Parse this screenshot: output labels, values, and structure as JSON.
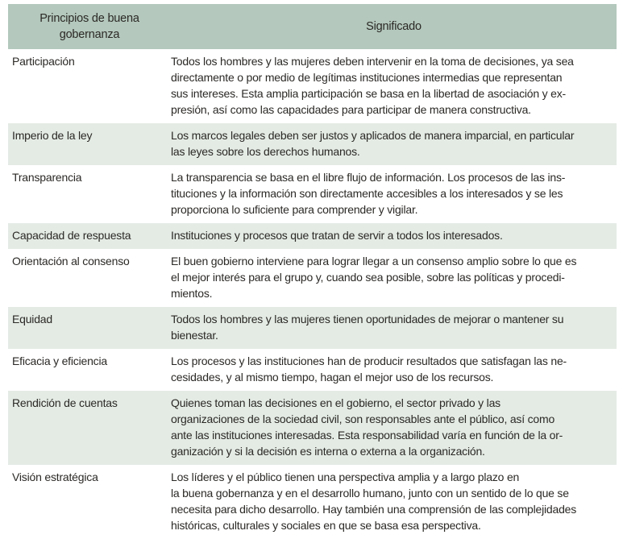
{
  "colors": {
    "header_bg": "#b4c8bd",
    "row_alt_bg": "#e4ebe5",
    "text_color": "#2b2926"
  },
  "table": {
    "header": {
      "col1": "Principios de buena\ngobernanza",
      "col2": "Significado"
    },
    "rows": [
      {
        "term": "Participación",
        "meaning": "Todos los hombres y las mujeres deben intervenir en la toma de decisiones, ya sea\ndirectamente o por medio de legítimas instituciones intermedias que representan\nsus intereses. Esta amplia participación se basa en la libertad de asociación y ex-\npresión, así como las capacidades para participar de manera constructiva."
      },
      {
        "term": "Imperio de la ley",
        "meaning": "Los marcos legales deben ser justos y aplicados de manera imparcial, en particular\nlas leyes sobre los derechos humanos."
      },
      {
        "term": "Transparencia",
        "meaning": "La transparencia se basa en el libre flujo de información. Los procesos de las ins-\ntituciones y la información son directamente accesibles a los interesados y se les\nproporciona lo suficiente para comprender y vigilar."
      },
      {
        "term": "Capacidad de respuesta",
        "meaning": "Instituciones y procesos que tratan de servir a todos los interesados."
      },
      {
        "term": "Orientación al consenso",
        "meaning": "El buen gobierno interviene para lograr llegar a un consenso amplio sobre lo que es\nel mejor interés para el grupo y, cuando sea posible, sobre las políticas y procedi-\nmientos."
      },
      {
        "term": "Equidad",
        "meaning": "Todos los hombres y las mujeres tienen oportunidades de mejorar o mantener su\nbienestar."
      },
      {
        "term": "Eficacia y eficiencia",
        "meaning": "Los procesos y las instituciones han de producir resultados que satisfagan las ne-\ncesidades, y al mismo tiempo, hagan el mejor uso de los recursos."
      },
      {
        "term": "Rendición de cuentas",
        "meaning": "Quienes toman las decisiones en el gobierno, el sector privado y las\norganizaciones de la sociedad civil, son responsables ante el público, así como\nante las instituciones interesadas. Esta responsabilidad  varía en función de la or-\nganización y si la decisión es interna o externa a la organización."
      },
      {
        "term": "Visión estratégica",
        "meaning": "Los líderes y el público tienen una perspectiva amplia y a largo plazo en\nla buena gobernanza y en el desarrollo humano, junto con un sentido de lo que se\nnecesita para dicho desarrollo. Hay también una comprensión de las complejidades\nhistóricas, culturales y sociales en que se basa esa perspectiva."
      }
    ]
  }
}
